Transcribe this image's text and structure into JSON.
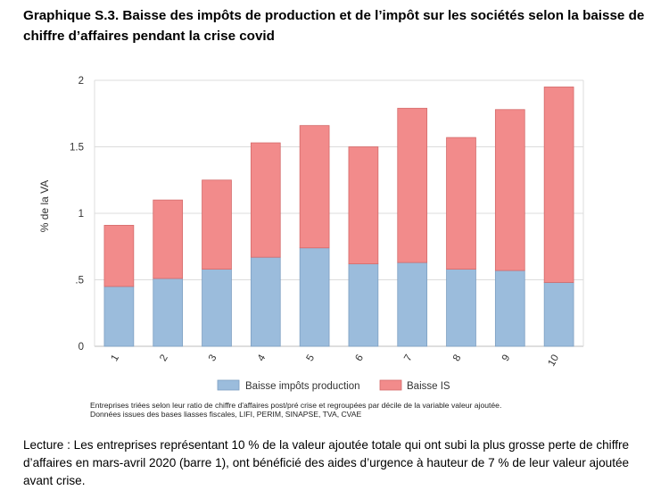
{
  "title": "Graphique S.3. Baisse des impôts de production et de l’impôt sur les sociétés selon la baisse de chiffre d’affaires pendant la crise covid",
  "chart_data": {
    "type": "bar",
    "stacked": true,
    "categories": [
      "1",
      "2",
      "3",
      "4",
      "5",
      "6",
      "7",
      "8",
      "9",
      "10"
    ],
    "series": [
      {
        "name": "Baisse impôts production",
        "color": "#9bbcdc",
        "values": [
          0.45,
          0.51,
          0.58,
          0.67,
          0.74,
          0.62,
          0.63,
          0.58,
          0.57,
          0.48
        ]
      },
      {
        "name": "Baisse IS",
        "color": "#f28b8b",
        "values": [
          0.46,
          0.59,
          0.67,
          0.86,
          0.92,
          0.88,
          1.16,
          0.99,
          1.21,
          1.47
        ]
      }
    ],
    "ylabel": "% de la VA",
    "xlabel": "",
    "ylim": [
      0,
      2
    ],
    "yticks": [
      "0",
      ".5",
      "1",
      "1.5",
      "2"
    ],
    "grid": true,
    "legend_position": "bottom"
  },
  "notes": [
    "Entreprises triées selon leur ratio de chiffre d'affaires post/pré crise et regroupées par décile de la variable valeur ajoutée.",
    "Données issues des bases liasses fiscales, LIFI, PERIM, SINAPSE, TVA, CVAE"
  ],
  "reading": "Lecture : Les entreprises représentant 10 % de la valeur ajoutée totale qui ont subi la plus grosse perte de chiffre d’affaires en mars-avril 2020 (barre 1), ont bénéficié des aides d’urgence à hauteur de 7 % de leur valeur ajoutée avant crise."
}
